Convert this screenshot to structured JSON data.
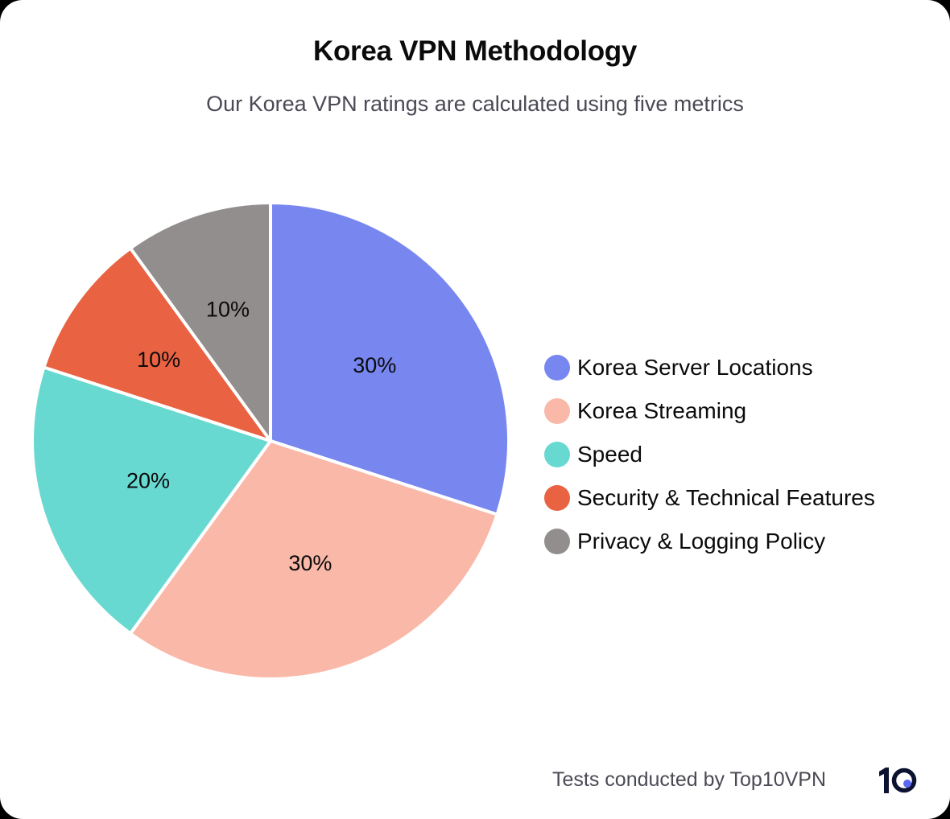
{
  "header": {
    "title": "Korea VPN Methodology",
    "subtitle": "Our Korea VPN ratings are calculated using five metrics"
  },
  "footer": {
    "credit": "Tests conducted by Top10VPN",
    "logo_icon": "top10vpn-logo-icon",
    "logo_text": "10",
    "logo_dot_color": "#5a67f2",
    "logo_color": "#0c1330"
  },
  "chart_data": {
    "type": "pie",
    "title": "Korea VPN Methodology",
    "subtitle": "Our Korea VPN ratings are calculated using five metrics",
    "categories": [
      "Korea Server Locations",
      "Korea Streaming",
      "Speed",
      "Security & Technical Features",
      "Privacy & Logging Policy"
    ],
    "values": [
      30,
      30,
      20,
      10,
      10
    ],
    "labels": [
      "30%",
      "30%",
      "20%",
      "10%",
      "10%"
    ],
    "colors": [
      "#7886ef",
      "#f9b8a8",
      "#68d9d1",
      "#e96242",
      "#928e8d"
    ],
    "start_angle": "12 o'clock, clockwise",
    "legend_position": "right"
  },
  "legend": {
    "items": [
      {
        "label": "Korea Server Locations",
        "color": "#7886ef"
      },
      {
        "label": "Korea Streaming",
        "color": "#f9b8a8"
      },
      {
        "label": "Speed",
        "color": "#68d9d1"
      },
      {
        "label": "Security & Technical Features",
        "color": "#e96242"
      },
      {
        "label": "Privacy & Logging Policy",
        "color": "#928e8d"
      }
    ]
  }
}
